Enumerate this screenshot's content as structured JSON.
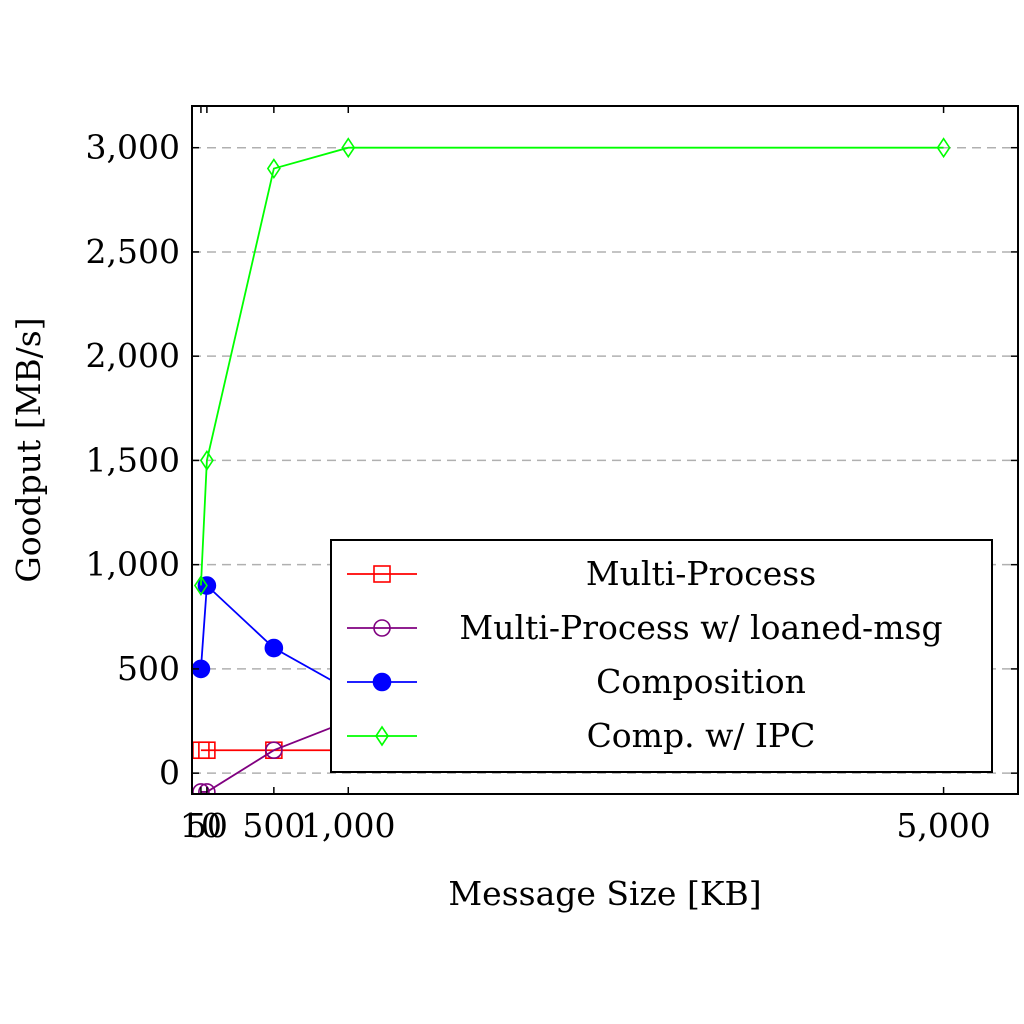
{
  "chart_data": {
    "type": "line",
    "title": "",
    "xlabel": "Message Size [KB]",
    "ylabel": "Goodput [MB/s]",
    "xlim": [
      -50,
      5500
    ],
    "ylim": [
      -100,
      3200
    ],
    "xticks": [
      10,
      50,
      500,
      1000,
      5000
    ],
    "xtick_labels": [
      "10",
      "50",
      "500",
      "1,000",
      "5,000"
    ],
    "yticks": [
      0,
      500,
      1000,
      1500,
      2000,
      2500,
      3000
    ],
    "ytick_labels": [
      "0",
      "500",
      "1,000",
      "1,500",
      "2,000",
      "2,500",
      "3,000"
    ],
    "grid": "horizontal dashed",
    "legend_position": "bottom-right",
    "series": [
      {
        "name": "Multi-Process",
        "color": "#ff0000",
        "marker": "square-open",
        "x": [
          10,
          50,
          500,
          1000,
          5000
        ],
        "y": [
          110,
          110,
          110,
          110,
          110
        ]
      },
      {
        "name": "Multi-Process w/ loaned-msg",
        "color": "#800080",
        "marker": "circle-open",
        "x": [
          10,
          50,
          500,
          1000
        ],
        "y": [
          -90,
          -90,
          110,
          250
        ]
      },
      {
        "name": "Composition",
        "color": "#0000ff",
        "marker": "circle-filled",
        "x": [
          10,
          50,
          500,
          1000
        ],
        "y": [
          500,
          900,
          600,
          400
        ]
      },
      {
        "name": "Comp. w/ IPC",
        "color": "#00ff00",
        "marker": "diamond-open",
        "x": [
          10,
          50,
          500,
          1000,
          5000
        ],
        "y": [
          900,
          1500,
          2900,
          3000,
          3000
        ]
      }
    ]
  }
}
